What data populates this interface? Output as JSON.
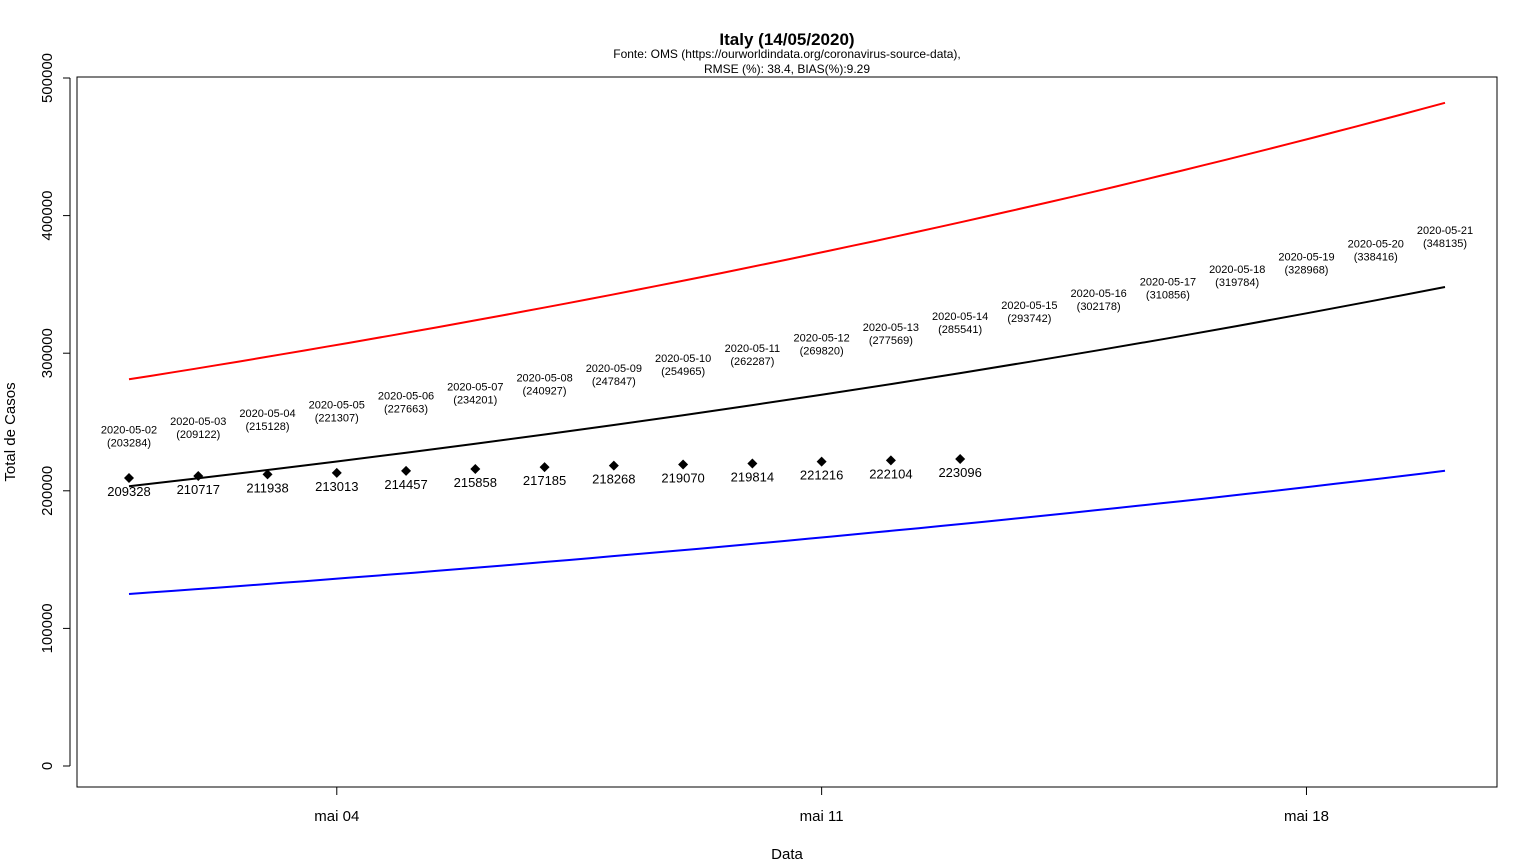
{
  "chart_data": {
    "type": "line",
    "title": "Italy (14/05/2020)",
    "subtitle_lines": [
      "Fonte: OMS (https://ourworldindata.org/coronavirus-source-data),",
      "RMSE (%): 38.4, BIAS(%):9.29"
    ],
    "xlabel": "Data",
    "ylabel": "Total de Casos",
    "ylim": [
      0,
      500000
    ],
    "y_ticks": [
      0,
      100000,
      200000,
      300000,
      400000,
      500000
    ],
    "x_ticks": [
      {
        "day": 3,
        "label": "mai 04"
      },
      {
        "day": 10,
        "label": "mai 11"
      },
      {
        "day": 17,
        "label": "mai 18"
      }
    ],
    "grid": false,
    "colors": {
      "predicted": "#000000",
      "upper": "#ff0000",
      "lower": "#0000ff",
      "observed": "#000000"
    },
    "predicted": [
      {
        "date": "2020-05-02",
        "value": 203284
      },
      {
        "date": "2020-05-03",
        "value": 209122
      },
      {
        "date": "2020-05-04",
        "value": 215128
      },
      {
        "date": "2020-05-05",
        "value": 221307
      },
      {
        "date": "2020-05-06",
        "value": 227663
      },
      {
        "date": "2020-05-07",
        "value": 234201
      },
      {
        "date": "2020-05-08",
        "value": 240927
      },
      {
        "date": "2020-05-09",
        "value": 247847
      },
      {
        "date": "2020-05-10",
        "value": 254965
      },
      {
        "date": "2020-05-11",
        "value": 262287
      },
      {
        "date": "2020-05-12",
        "value": 269820
      },
      {
        "date": "2020-05-13",
        "value": 277569
      },
      {
        "date": "2020-05-14",
        "value": 285541
      },
      {
        "date": "2020-05-15",
        "value": 293742
      },
      {
        "date": "2020-05-16",
        "value": 302178
      },
      {
        "date": "2020-05-17",
        "value": 310856
      },
      {
        "date": "2020-05-18",
        "value": 319784
      },
      {
        "date": "2020-05-19",
        "value": 328968
      },
      {
        "date": "2020-05-20",
        "value": 338416
      },
      {
        "date": "2020-05-21",
        "value": 348135
      }
    ],
    "upper_bound": {
      "start_date": "2020-05-02",
      "start": 281000,
      "end_date": "2020-05-21",
      "end": 482000
    },
    "lower_bound": {
      "start_date": "2020-05-02",
      "start": 125000,
      "end_date": "2020-05-21",
      "end": 214500
    },
    "observed": [
      {
        "date": "2020-05-02",
        "value": 209328
      },
      {
        "date": "2020-05-03",
        "value": 210717
      },
      {
        "date": "2020-05-04",
        "value": 211938
      },
      {
        "date": "2020-05-05",
        "value": 213013
      },
      {
        "date": "2020-05-06",
        "value": 214457
      },
      {
        "date": "2020-05-07",
        "value": 215858
      },
      {
        "date": "2020-05-08",
        "value": 217185
      },
      {
        "date": "2020-05-09",
        "value": 218268
      },
      {
        "date": "2020-05-10",
        "value": 219070
      },
      {
        "date": "2020-05-11",
        "value": 219814
      },
      {
        "date": "2020-05-12",
        "value": 221216
      },
      {
        "date": "2020-05-13",
        "value": 222104
      },
      {
        "date": "2020-05-14",
        "value": 223096
      }
    ]
  }
}
